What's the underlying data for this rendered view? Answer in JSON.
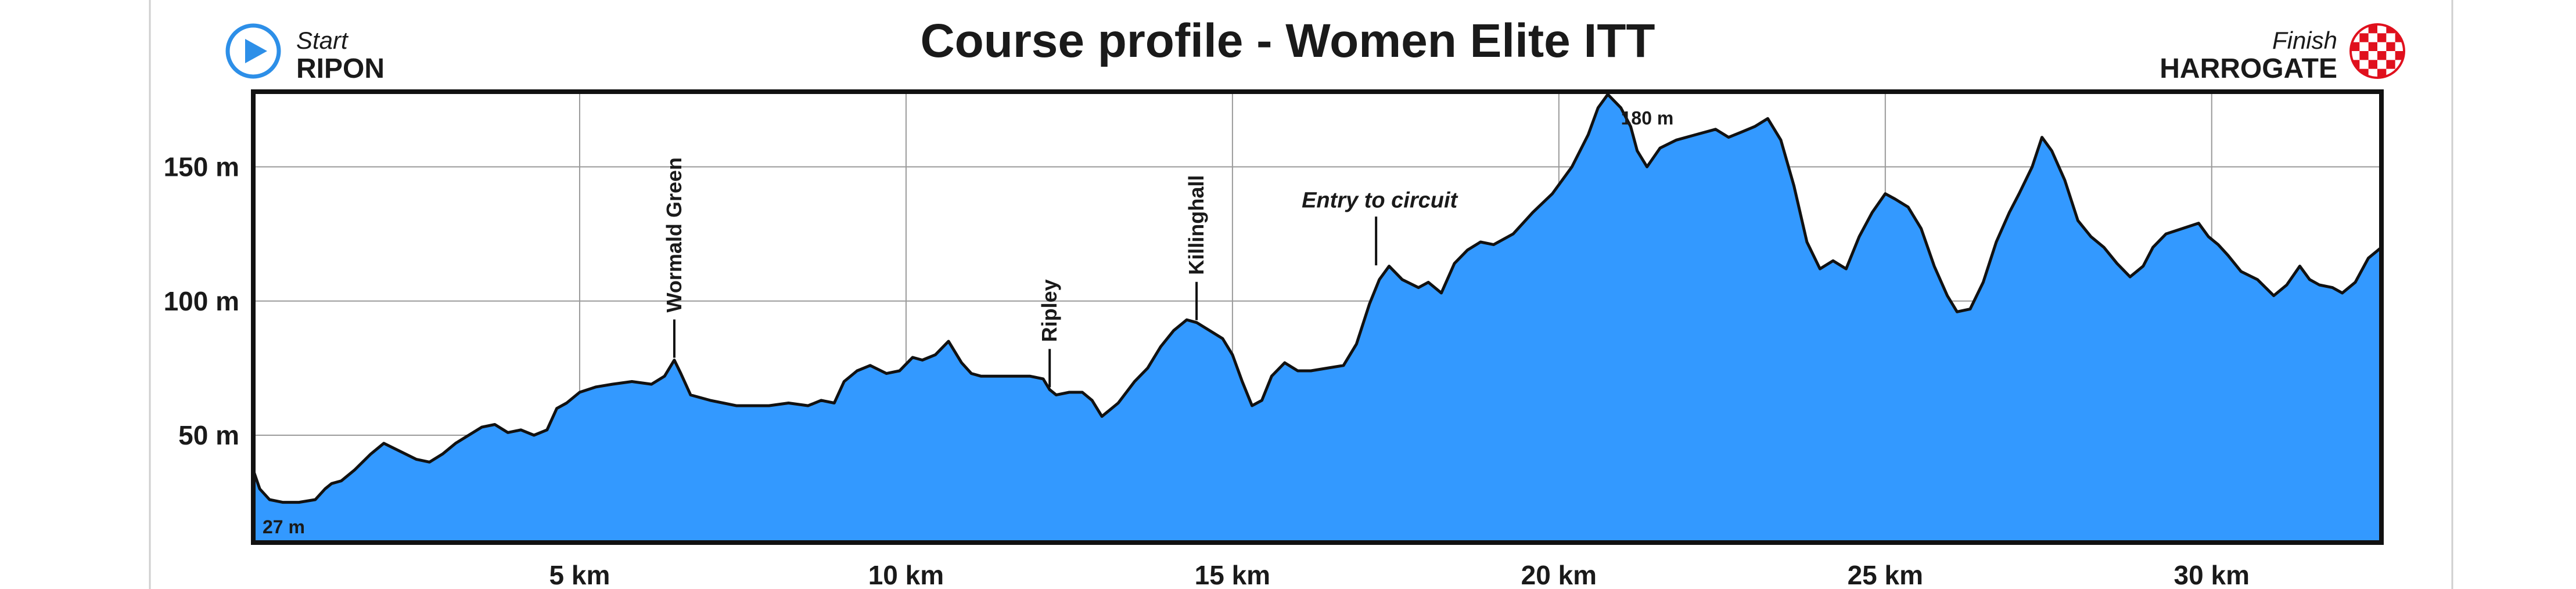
{
  "chart_data": {
    "type": "area",
    "title": "Course profile - Women Elite ITT",
    "xlabel": "",
    "ylabel": "",
    "xlim": [
      0,
      32.6
    ],
    "ylim": [
      10,
      178
    ],
    "x_ticks": [
      5,
      10,
      15,
      20,
      25,
      30
    ],
    "x_tick_labels": [
      "5 km",
      "10 km",
      "15 km",
      "20 km",
      "25 km",
      "30 km"
    ],
    "y_ticks": [
      50,
      100,
      150
    ],
    "y_tick_labels": [
      "50 m",
      "100 m",
      "150 m"
    ],
    "grid": true,
    "fill_color": "#3399ff",
    "line_color": "#111111",
    "start": {
      "caption": "Start",
      "name": "RIPON"
    },
    "finish": {
      "caption": "Finish",
      "name": "HARROGATE"
    },
    "min_label": "27 m",
    "max_label": "180 m",
    "annotations": [
      {
        "text": "Wormald Green",
        "x": 6.45,
        "y": 78,
        "style": "vertical"
      },
      {
        "text": "Ripley",
        "x": 12.2,
        "y": 67,
        "style": "vertical"
      },
      {
        "text": "Killinghall",
        "x": 14.45,
        "y": 92,
        "style": "vertical"
      },
      {
        "text": "Entry to circuit",
        "x": 17.2,
        "y": 112,
        "style": "italic"
      }
    ],
    "series": [
      {
        "x": [
          0,
          0.1,
          0.25,
          0.45,
          0.7,
          0.95,
          1.1,
          1.2,
          1.35,
          1.55,
          1.8,
          2.0,
          2.25,
          2.5,
          2.7,
          2.9,
          3.1,
          3.3,
          3.5,
          3.7,
          3.9,
          4.1,
          4.3,
          4.5,
          4.65,
          4.8,
          5.0,
          5.25,
          5.5,
          5.8,
          6.1,
          6.3,
          6.45,
          6.55,
          6.7,
          7.0,
          7.2,
          7.4,
          7.6,
          7.9,
          8.2,
          8.5,
          8.7,
          8.9,
          9.05,
          9.25,
          9.45,
          9.7,
          9.9,
          10.1,
          10.25,
          10.45,
          10.65,
          10.85,
          11.0,
          11.15,
          11.35,
          11.6,
          11.9,
          12.1,
          12.2,
          12.3,
          12.5,
          12.7,
          12.85,
          13.0,
          13.25,
          13.5,
          13.7,
          13.9,
          14.1,
          14.3,
          14.45,
          14.65,
          14.85,
          15.0,
          15.15,
          15.3,
          15.45,
          15.6,
          15.8,
          16.0,
          16.2,
          16.45,
          16.7,
          16.9,
          17.1,
          17.25,
          17.4,
          17.6,
          17.85,
          18.0,
          18.2,
          18.4,
          18.6,
          18.8,
          19.0,
          19.3,
          19.6,
          19.9,
          20.2,
          20.45,
          20.6,
          20.75,
          20.95,
          21.1,
          21.2,
          21.35,
          21.55,
          21.8,
          22.1,
          22.4,
          22.6,
          22.8,
          23.0,
          23.2,
          23.4,
          23.6,
          23.8,
          24.0,
          24.2,
          24.4,
          24.6,
          24.8,
          25.0,
          25.15,
          25.35,
          25.55,
          25.75,
          25.95,
          26.1,
          26.3,
          26.5,
          26.7,
          26.9,
          27.05,
          27.25,
          27.4,
          27.55,
          27.75,
          27.95,
          28.15,
          28.35,
          28.55,
          28.75,
          28.95,
          29.1,
          29.3,
          29.55,
          29.8,
          29.95,
          30.1,
          30.25,
          30.45,
          30.7,
          30.95,
          31.15,
          31.35,
          31.5,
          31.65,
          31.85,
          32.0,
          32.2,
          32.4,
          32.6
        ],
        "y": [
          37,
          30,
          26,
          25,
          25,
          26,
          30,
          32,
          33,
          37,
          43,
          47,
          44,
          41,
          40,
          43,
          47,
          50,
          53,
          54,
          51,
          52,
          50,
          52,
          60,
          62,
          66,
          68,
          69,
          70,
          69,
          72,
          78,
          73,
          65,
          63,
          62,
          61,
          61,
          61,
          62,
          61,
          63,
          62,
          70,
          74,
          76,
          73,
          74,
          79,
          78,
          80,
          85,
          77,
          73,
          72,
          72,
          72,
          72,
          71,
          67,
          65,
          66,
          66,
          63,
          57,
          62,
          70,
          75,
          83,
          89,
          93,
          92,
          89,
          86,
          80,
          70,
          61,
          63,
          72,
          77,
          74,
          74,
          75,
          76,
          84,
          99,
          108,
          113,
          108,
          105,
          107,
          103,
          114,
          119,
          122,
          121,
          125,
          133,
          140,
          150,
          162,
          172,
          177,
          172,
          165,
          156,
          150,
          157,
          160,
          162,
          164,
          161,
          163,
          165,
          168,
          160,
          143,
          122,
          112,
          115,
          112,
          124,
          133,
          140,
          138,
          135,
          127,
          113,
          102,
          96,
          97,
          107,
          122,
          133,
          140,
          150,
          161,
          156,
          145,
          130,
          124,
          120,
          114,
          109,
          113,
          120,
          125,
          127,
          129,
          124,
          121,
          117,
          111,
          108,
          102,
          106,
          113,
          108,
          106,
          105,
          103,
          107,
          116,
          120
        ]
      }
    ]
  }
}
